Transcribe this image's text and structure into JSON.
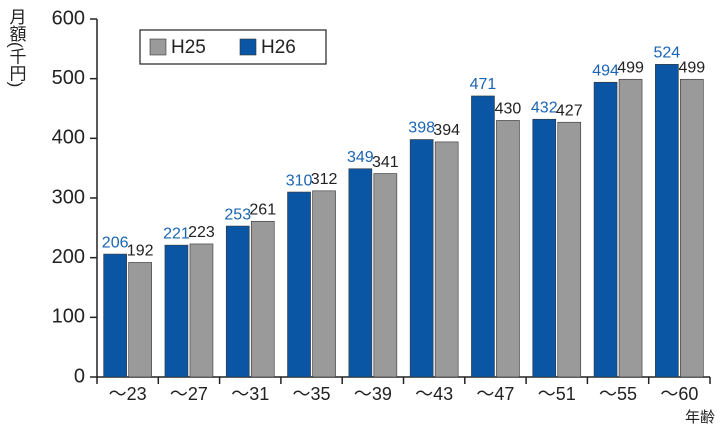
{
  "chart_data": {
    "type": "bar",
    "y_label": "月額(千円)",
    "x_label": "年齢",
    "categories": [
      "〜23",
      "〜27",
      "〜31",
      "〜35",
      "〜39",
      "〜43",
      "〜47",
      "〜51",
      "〜55",
      "〜60"
    ],
    "series": [
      {
        "name": "H26",
        "color": "#0a56a5",
        "label_color": "#1a64b4",
        "values": [
          206,
          221,
          253,
          310,
          349,
          398,
          471,
          432,
          494,
          524
        ]
      },
      {
        "name": "H25",
        "color": "#9a9a9a",
        "label_color": "#222222",
        "values": [
          192,
          223,
          261,
          312,
          341,
          394,
          430,
          427,
          499,
          499
        ]
      }
    ],
    "legend_order": [
      "H25",
      "H26"
    ],
    "ylim": [
      0,
      600
    ],
    "yticks": [
      0,
      100,
      200,
      300,
      400,
      500,
      600
    ],
    "grid": false,
    "legend": "upper left"
  }
}
